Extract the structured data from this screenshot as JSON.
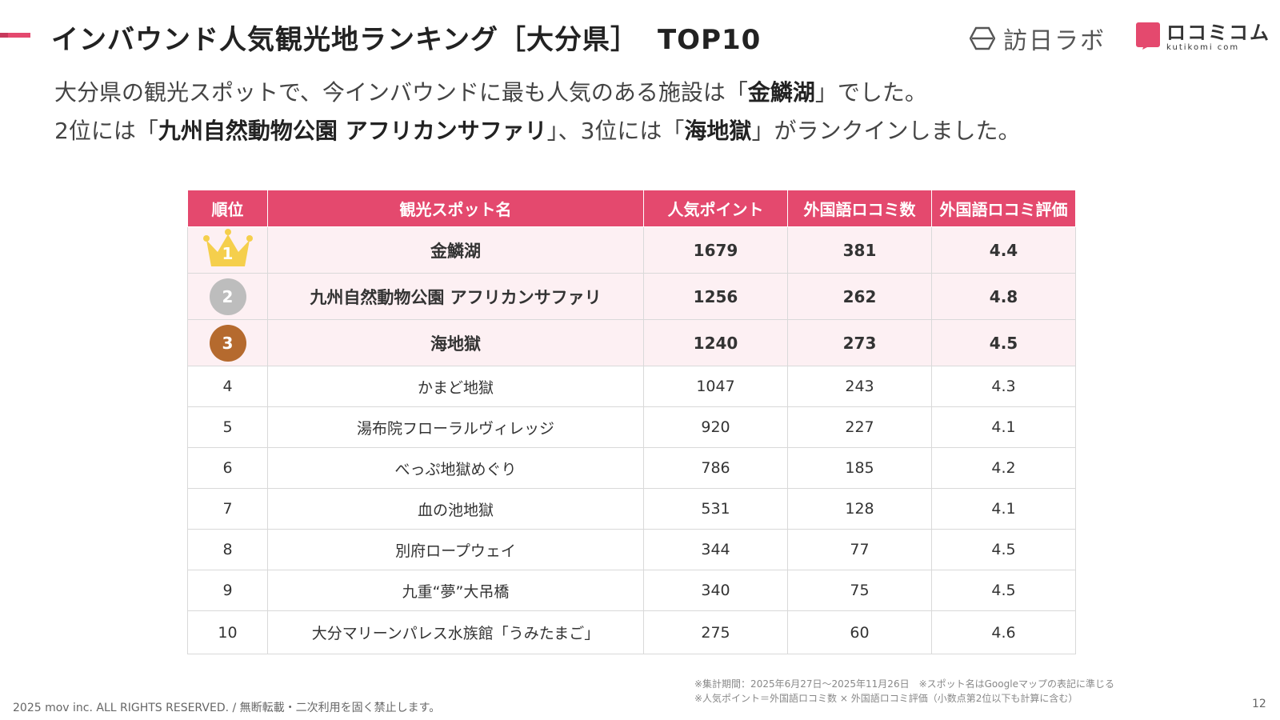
{
  "header": {
    "title": "インバウンド人気観光地ランキング［大分県］",
    "title_suffix": "TOP10",
    "logo_houni_text": "訪日ラボ",
    "logo_kuti_text": "ロコミコム",
    "logo_kuti_sub": "kutikomi com"
  },
  "lead": {
    "l1_a": "大分県の観光スポットで、今インバウンドに最も人気のある施設は「",
    "l1_b": "金鱗湖",
    "l1_c": "」でした。",
    "l2_a": "2位には「",
    "l2_b": "九州自然動物公園 アフリカンサファリ",
    "l2_c": "」、3位には「",
    "l2_d": "海地獄",
    "l2_e": "」がランクインしました。"
  },
  "table": {
    "headers": [
      "順位",
      "観光スポット名",
      "人気ポイント",
      "外国語ロコミ数",
      "外国語ロコミ評価"
    ],
    "rows": [
      {
        "rank": "1",
        "name": "金鱗湖",
        "points": "1679",
        "count": "381",
        "rating": "4.4"
      },
      {
        "rank": "2",
        "name": "九州自然動物公園 アフリカンサファリ",
        "points": "1256",
        "count": "262",
        "rating": "4.8"
      },
      {
        "rank": "3",
        "name": "海地獄",
        "points": "1240",
        "count": "273",
        "rating": "4.5"
      },
      {
        "rank": "4",
        "name": "かまど地獄",
        "points": "1047",
        "count": "243",
        "rating": "4.3"
      },
      {
        "rank": "5",
        "name": "湯布院フローラルヴィレッジ",
        "points": "920",
        "count": "227",
        "rating": "4.1"
      },
      {
        "rank": "6",
        "name": "べっぷ地獄めぐり",
        "points": "786",
        "count": "185",
        "rating": "4.2"
      },
      {
        "rank": "7",
        "name": "血の池地獄",
        "points": "531",
        "count": "128",
        "rating": "4.1"
      },
      {
        "rank": "8",
        "name": "別府ロープウェイ",
        "points": "344",
        "count": "77",
        "rating": "4.5"
      },
      {
        "rank": "9",
        "name": "九重“夢”大吊橋",
        "points": "340",
        "count": "75",
        "rating": "4.5"
      },
      {
        "rank": "10",
        "name": "大分マリーンパレス水族館「うみたまご」",
        "points": "275",
        "count": "60",
        "rating": "4.6"
      }
    ]
  },
  "notes": {
    "line1": "※集計期間：2025年6月27日〜2025年11月26日　※スポット名はGoogleマップの表記に準じる",
    "line2": "※人気ポイント＝外国語ロコミ数 × 外国語ロコミ評価（小数点第2位以下も計算に含む）"
  },
  "footer": {
    "copyright": "2025 mov inc. ALL RIGHTS RESERVED. / 無断転載・二次利用を固く禁止します。",
    "page": "12"
  },
  "colors": {
    "accent": "#e4496e",
    "highlight_row": "#fdf0f3",
    "gold": "#f5cf4c",
    "silver": "#bdbdbd",
    "bronze": "#b56a2e"
  }
}
